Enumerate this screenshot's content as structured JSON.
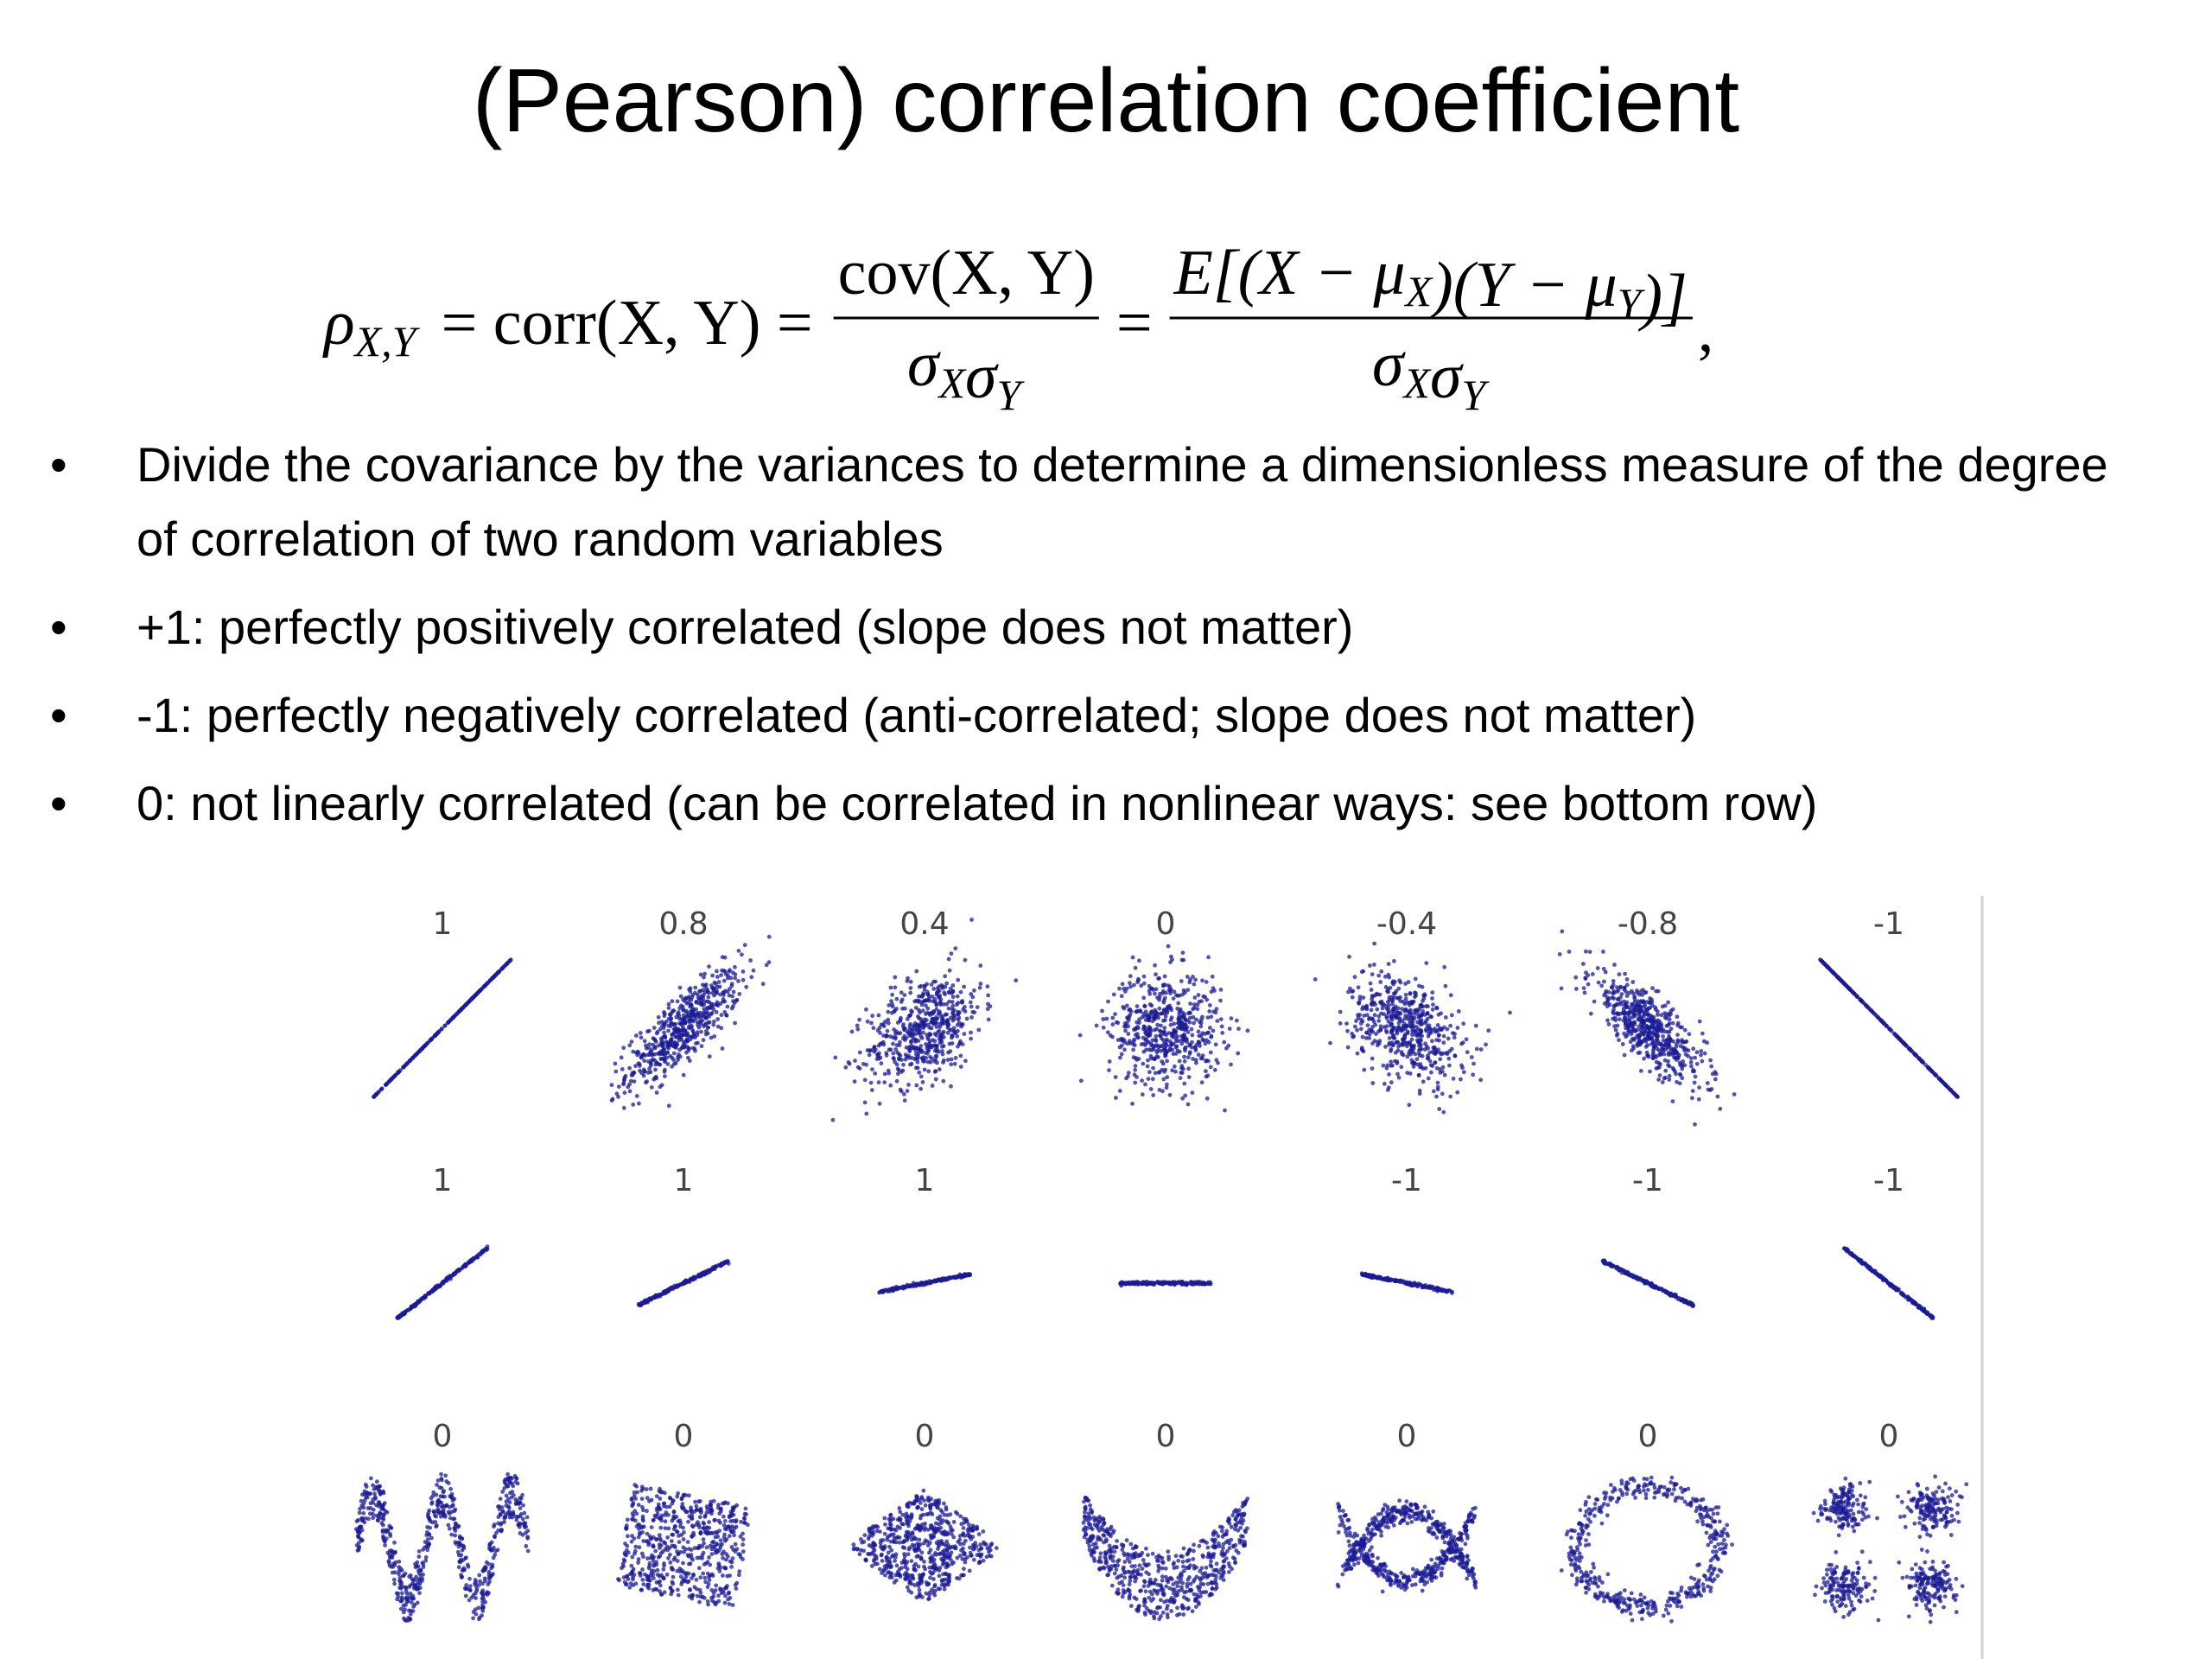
{
  "title": "(Pearson) correlation coefficient",
  "formula": {
    "lhs": {
      "text": "ρ",
      "sub": "X,Y"
    },
    "corr": "= corr(X, Y) =",
    "fraction1": {
      "numerator": [
        {
          "text": "cov(X, Y)"
        }
      ],
      "denominator": [
        {
          "text": "σ",
          "sub": "X"
        },
        {
          "text": "σ",
          "sub": "Y"
        }
      ]
    },
    "equals": "=",
    "fraction2": {
      "numerator": [
        {
          "text": "E[(X − μ",
          "sub": "X"
        },
        {
          "text": ")(Y − μ",
          "sub": "Y"
        },
        {
          "text": ")]"
        }
      ],
      "denominator": [
        {
          "text": "σ",
          "sub": "X"
        },
        {
          "text": "σ",
          "sub": "Y"
        }
      ]
    },
    "comma": ","
  },
  "bullets": [
    "Divide the covariance by the variances to determine a dimensionless measure of the degree of correlation of two random variables",
    "+1: perfectly positively correlated (slope does not matter)",
    "-1: perfectly negatively correlated (anti-correlated; slope does not matter)",
    "0: not linearly correlated (can be correlated in nonlinear ways: see bottom row)"
  ],
  "figure": {
    "rows": [
      [
        1,
        0.8,
        0.4,
        0,
        -0.4,
        -0.8,
        -1
      ],
      [
        1,
        1,
        1,
        null,
        -1,
        -1,
        -1
      ],
      [
        0,
        0,
        0,
        0,
        0,
        0,
        0
      ]
    ]
  }
}
